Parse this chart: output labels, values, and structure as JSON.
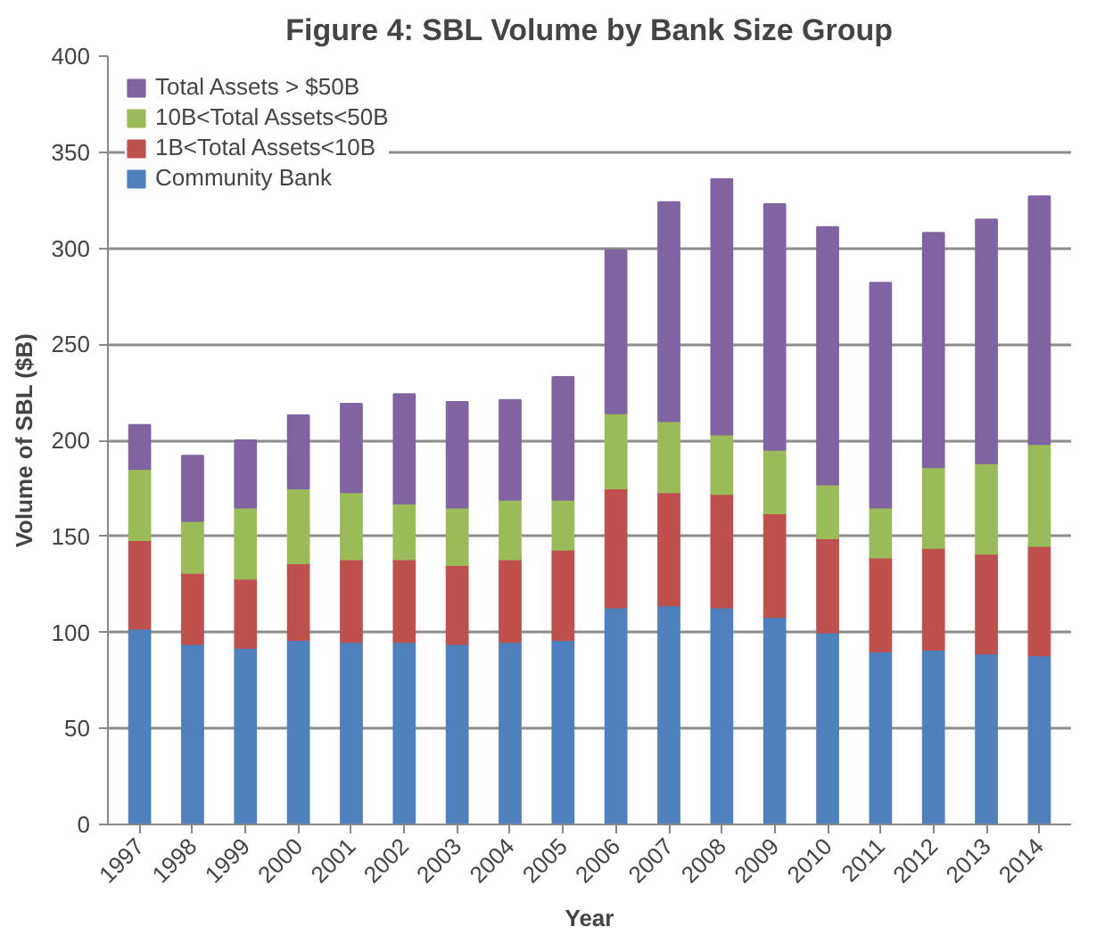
{
  "chart_data": {
    "type": "bar",
    "stacked": true,
    "title": "Figure 4: SBL Volume by Bank Size Group",
    "xlabel": "Year",
    "ylabel": "Volume of SBL ($B)",
    "categories": [
      "1997",
      "1998",
      "1999",
      "2000",
      "2001",
      "2002",
      "2003",
      "2004",
      "2005",
      "2006",
      "2007",
      "2008",
      "2009",
      "2010",
      "2011",
      "2012",
      "2013",
      "2014"
    ],
    "series": [
      {
        "name": "Community Bank",
        "color": "#4f81bd",
        "values": [
          102,
          94,
          92,
          96,
          95,
          95,
          94,
          95,
          96,
          113,
          114,
          113,
          108,
          100,
          90,
          91,
          89,
          88
        ]
      },
      {
        "name": "1B<Total Assets<10B",
        "color": "#c0504d",
        "values": [
          46,
          37,
          36,
          40,
          43,
          43,
          41,
          43,
          47,
          62,
          59,
          59,
          54,
          49,
          49,
          53,
          52,
          57
        ]
      },
      {
        "name": "10B<Total Assets<50B",
        "color": "#9bbb59",
        "values": [
          37,
          27,
          37,
          39,
          35,
          29,
          30,
          31,
          26,
          39,
          37,
          31,
          33,
          28,
          26,
          42,
          47,
          53
        ]
      },
      {
        "name": "Total Assets > $50B",
        "color": "#8064a2",
        "values": [
          23,
          34,
          35,
          38,
          46,
          57,
          55,
          52,
          64,
          85,
          114,
          133,
          128,
          134,
          117,
          122,
          127,
          129
        ]
      }
    ],
    "ylim": [
      0,
      400
    ],
    "yticks": [
      0,
      50,
      100,
      150,
      200,
      250,
      300,
      350,
      400
    ],
    "grid": "y",
    "legend": "top left"
  }
}
